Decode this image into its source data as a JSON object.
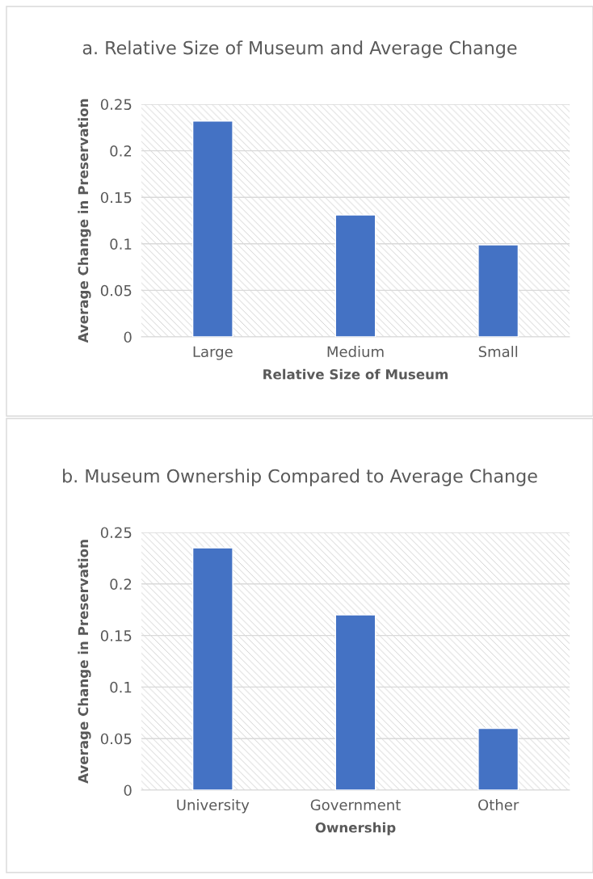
{
  "chart_data": [
    {
      "type": "bar",
      "title": "a. Relative Size of Museum and Average Change",
      "xlabel": "Relative Size of Museum",
      "ylabel": "Average Change in Preservation",
      "categories": [
        "Large",
        "Medium",
        "Small"
      ],
      "values": [
        0.232,
        0.131,
        0.099
      ],
      "color": "#4472c4",
      "ylim": [
        0,
        0.25
      ],
      "yticks": [
        0,
        0.05,
        0.1,
        0.15,
        0.2,
        0.25
      ],
      "grid": "y"
    },
    {
      "type": "bar",
      "title": "b. Museum Ownership Compared to Average Change",
      "xlabel": "Ownership",
      "ylabel": "Average Change in Preservation",
      "categories": [
        "University",
        "Government",
        "Other"
      ],
      "values": [
        0.235,
        0.17,
        0.06
      ],
      "color": "#4472c4",
      "ylim": [
        0,
        0.25
      ],
      "yticks": [
        0,
        0.05,
        0.1,
        0.15,
        0.2,
        0.25
      ],
      "grid": "y"
    }
  ]
}
